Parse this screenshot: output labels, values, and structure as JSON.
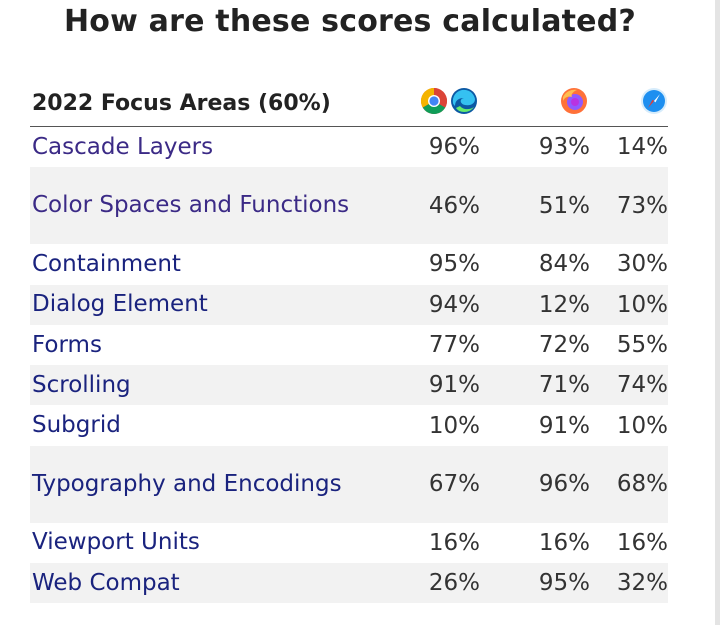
{
  "page": {
    "title": "How are these scores calculated?"
  },
  "table": {
    "header_label": "2022 Focus Areas (60%)",
    "browsers": [
      {
        "name": "chrome-edge",
        "icons": [
          "chrome-icon",
          "edge-icon"
        ]
      },
      {
        "name": "firefox",
        "icons": [
          "firefox-icon"
        ]
      },
      {
        "name": "safari",
        "icons": [
          "safari-icon"
        ]
      }
    ],
    "rows": [
      {
        "name": "Cascade Layers",
        "a": "96%",
        "b": "93%",
        "c": "14%"
      },
      {
        "name": "Color Spaces and Functions",
        "a": "46%",
        "b": "51%",
        "c": "73%"
      },
      {
        "name": "Containment",
        "a": "95%",
        "b": "84%",
        "c": "30%"
      },
      {
        "name": "Dialog Element",
        "a": "94%",
        "b": "12%",
        "c": "10%"
      },
      {
        "name": "Forms",
        "a": "77%",
        "b": "72%",
        "c": "55%"
      },
      {
        "name": "Scrolling",
        "a": "91%",
        "b": "71%",
        "c": "74%"
      },
      {
        "name": "Subgrid",
        "a": "10%",
        "b": "91%",
        "c": "10%"
      },
      {
        "name": "Typography and Encodings",
        "a": "67%",
        "b": "96%",
        "c": "68%"
      },
      {
        "name": "Viewport Units",
        "a": "16%",
        "b": "16%",
        "c": "16%"
      },
      {
        "name": "Web Compat",
        "a": "26%",
        "b": "95%",
        "c": "32%"
      }
    ]
  },
  "colors": {
    "link": "#1a237e",
    "visited_link": "#3b2a86",
    "stripe": "#f2f2f2"
  }
}
